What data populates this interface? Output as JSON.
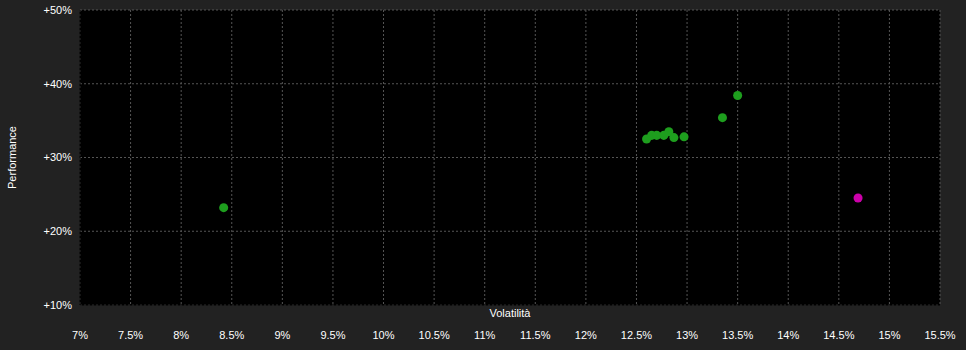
{
  "chart_data": {
    "type": "scatter",
    "x_label": "Volatilità",
    "y_label": "Performance",
    "xlim": [
      7,
      15.5
    ],
    "ylim": [
      10,
      50
    ],
    "xticks": [
      {
        "value": 7,
        "label": "7%"
      },
      {
        "value": 7.5,
        "label": "7.5%"
      },
      {
        "value": 8,
        "label": "8%"
      },
      {
        "value": 8.5,
        "label": "8.5%"
      },
      {
        "value": 9,
        "label": "9%"
      },
      {
        "value": 9.5,
        "label": "9.5%"
      },
      {
        "value": 10,
        "label": "10%"
      },
      {
        "value": 10.5,
        "label": "10.5%"
      },
      {
        "value": 11,
        "label": "11%"
      },
      {
        "value": 11.5,
        "label": "11.5%"
      },
      {
        "value": 12,
        "label": "12%"
      },
      {
        "value": 12.5,
        "label": "12.5%"
      },
      {
        "value": 13,
        "label": "13%"
      },
      {
        "value": 13.5,
        "label": "13.5%"
      },
      {
        "value": 14,
        "label": "14%"
      },
      {
        "value": 14.5,
        "label": "14.5%"
      },
      {
        "value": 15,
        "label": "15%"
      },
      {
        "value": 15.5,
        "label": "15.5%"
      }
    ],
    "yticks": [
      {
        "value": 10,
        "label": "+10%"
      },
      {
        "value": 20,
        "label": "+20%"
      },
      {
        "value": 30,
        "label": "+30%"
      },
      {
        "value": 40,
        "label": "+40%"
      },
      {
        "value": 50,
        "label": "+50%"
      }
    ],
    "grid": true,
    "series": [
      {
        "color": "#1e9e1e",
        "x": [
          8.42,
          12.6,
          12.65,
          12.7,
          12.77,
          12.82,
          12.87,
          12.97,
          13.35,
          13.5
        ],
        "values": [
          23.2,
          32.5,
          33,
          33,
          33,
          33.5,
          32.7,
          32.8,
          35.4,
          38.4
        ]
      },
      {
        "color": "#cc00aa",
        "x": [
          14.69
        ],
        "values": [
          24.5
        ]
      }
    ]
  }
}
